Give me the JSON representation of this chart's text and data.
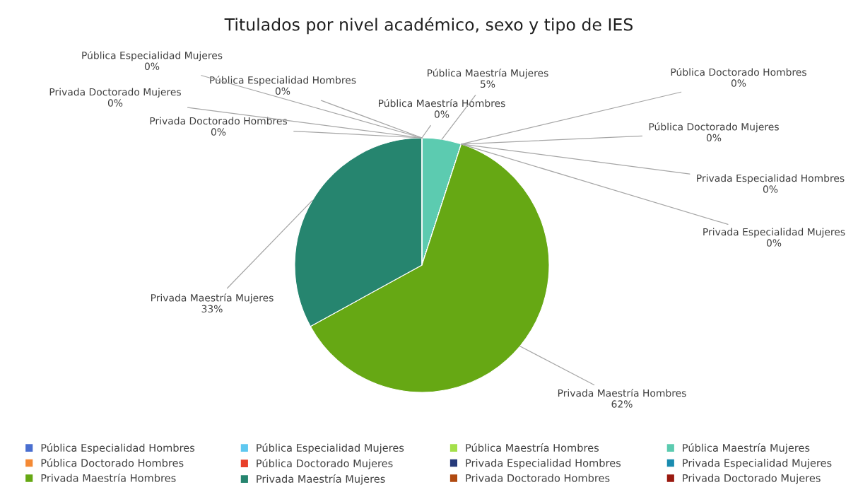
{
  "chart_data": {
    "type": "pie",
    "title": "Titulados por nivel académico, sexo y tipo de IES",
    "categories": [
      "Pública Especialidad Hombres",
      "Pública Especialidad Mujeres",
      "Pública Maestría Hombres",
      "Pública Maestría Mujeres",
      "Pública Doctorado Hombres",
      "Pública Doctorado Mujeres",
      "Privada Especialidad Hombres",
      "Privada Especialidad Mujeres",
      "Privada Maestría Hombres",
      "Privada Maestría Mujeres",
      "Privada Doctorado Hombres",
      "Privada Doctorado Mujeres"
    ],
    "values": [
      0,
      0,
      0,
      5,
      0,
      0,
      0,
      0,
      62,
      33,
      0,
      0
    ],
    "value_labels": [
      "0%",
      "0%",
      "0%",
      "5%",
      "0%",
      "0%",
      "0%",
      "0%",
      "62%",
      "33%",
      "0%",
      "0%"
    ],
    "colors": [
      "#4a6fd0",
      "#5fc8f0",
      "#a4e04a",
      "#5ccbb0",
      "#f58a35",
      "#e8402a",
      "#263a7a",
      "#1a8cb0",
      "#66a814",
      "#26856f",
      "#b04a10",
      "#9a1a10"
    ],
    "legend": "bottom"
  }
}
